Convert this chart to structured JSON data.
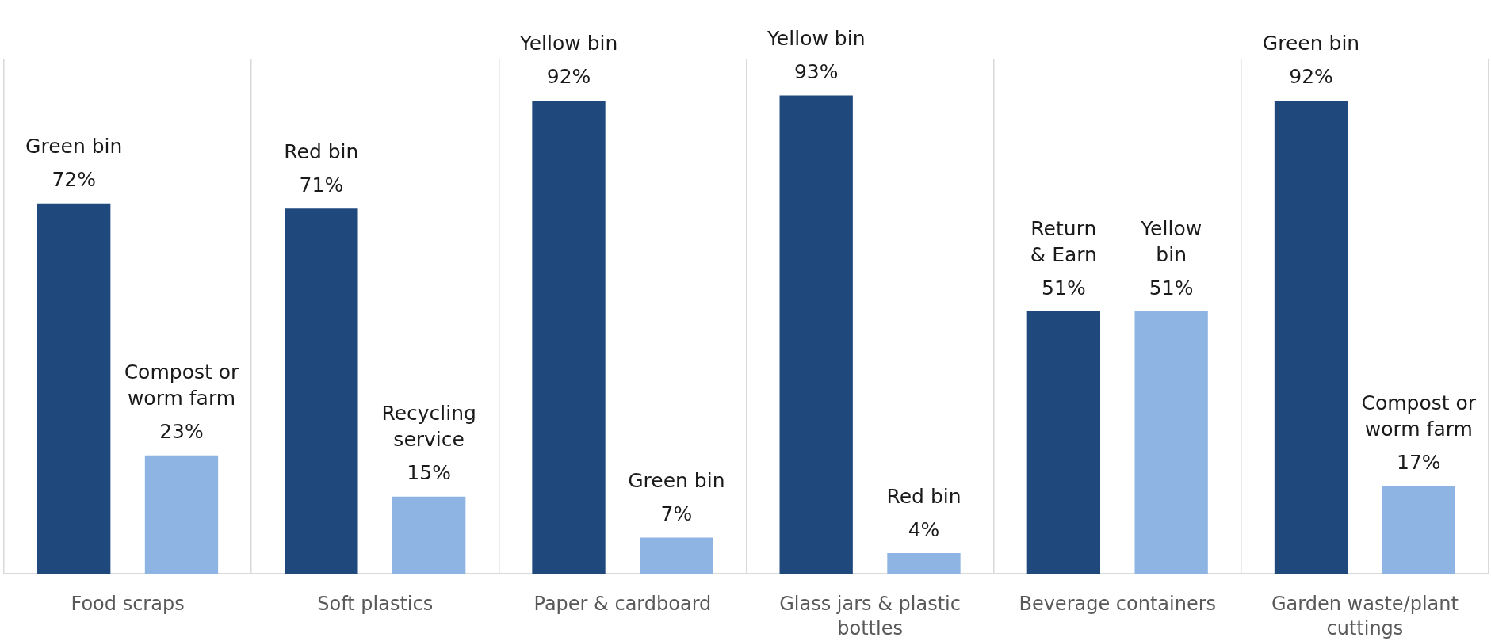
{
  "chart_data": {
    "type": "bar",
    "categories": [
      "Food scraps",
      "Soft plastics",
      "Paper & cardboard",
      "Glass jars & plastic bottles",
      "Beverage containers",
      "Garden waste/plant cuttings"
    ],
    "series": [
      {
        "color": "#1f497d",
        "values": [
          72,
          71,
          92,
          93,
          51,
          92
        ],
        "value_labels": [
          "72%",
          "71%",
          "92%",
          "93%",
          "51%",
          "92%"
        ]
      },
      {
        "color": "#8eb4e3",
        "values": [
          23,
          15,
          7,
          4,
          51,
          17
        ],
        "value_labels": [
          "23%",
          "15%",
          "7%",
          "4%",
          "51%",
          "17%"
        ]
      }
    ],
    "annotations": [
      "Green bin",
      "Compost or\nworm farm",
      "Red bin",
      "Recycling\nservice",
      "Yellow bin",
      "Green bin",
      "Yellow bin",
      "Red bin",
      "Return\n& Earn",
      "Yellow\nbin",
      "Green bin",
      "Compost or\nworm farm"
    ],
    "grid": "x"
  }
}
